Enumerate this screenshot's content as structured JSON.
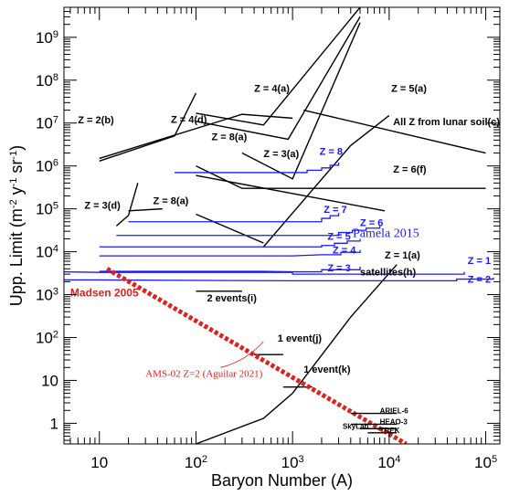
{
  "chart_data": {
    "type": "line",
    "xlabel": "Baryon Number (A)",
    "ylabel": "Upp. Limit (m",
    "ylabel_sup1": "-2",
    "ylabel_mid": " y",
    "ylabel_sup2": "-1",
    "ylabel_mid2": " sr",
    "ylabel_sup3": "-1",
    "ylabel_end": ")",
    "x_scale": "log",
    "y_scale": "log",
    "xlim": [
      4.3,
      140000
    ],
    "ylim": [
      0.33,
      5000000000
    ],
    "x_ticks": [
      {
        "value": 10,
        "base": "10",
        "exp": ""
      },
      {
        "value": 100,
        "base": "10",
        "exp": "2"
      },
      {
        "value": 1000,
        "base": "10",
        "exp": "3"
      },
      {
        "value": 10000,
        "base": "10",
        "exp": "4"
      },
      {
        "value": 100000,
        "base": "10",
        "exp": "5"
      }
    ],
    "y_ticks": [
      {
        "value": 1,
        "base": "1",
        "exp": ""
      },
      {
        "value": 10,
        "base": "10",
        "exp": ""
      },
      {
        "value": 100,
        "base": "10",
        "exp": "2"
      },
      {
        "value": 1000,
        "base": "10",
        "exp": "3"
      },
      {
        "value": 10000,
        "base": "10",
        "exp": "4"
      },
      {
        "value": 100000,
        "base": "10",
        "exp": "5"
      },
      {
        "value": 1000000,
        "base": "10",
        "exp": "6"
      },
      {
        "value": 10000000,
        "base": "10",
        "exp": "7"
      },
      {
        "value": 100000000,
        "base": "10",
        "exp": "8"
      },
      {
        "value": 1000000000,
        "base": "10",
        "exp": "9"
      }
    ],
    "grid": false,
    "colors": {
      "black": "#000000",
      "blue": "#1a1aff",
      "red": "#e0201c"
    },
    "series": [
      {
        "name": "Z = 4(a)",
        "color": "#000000",
        "kind": "black",
        "x": [
          100,
          500,
          5000
        ],
        "y": [
          17000000,
          9000000,
          5000000000
        ]
      },
      {
        "name": "Z = 5(a)",
        "color": "#000000",
        "kind": "black",
        "x": [
          500,
          4000,
          10000
        ],
        "y": [
          13000,
          3000000,
          15000000
        ]
      },
      {
        "name": "Z = 8(a)",
        "color": "#000000",
        "kind": "black",
        "x": [
          100,
          900,
          5000
        ],
        "y": [
          11000000,
          4200000,
          3000000000
        ]
      },
      {
        "name": "Z = 8(a)",
        "color": "#000000",
        "kind": "black",
        "x": [
          20,
          45
        ],
        "y": [
          90000,
          100000
        ]
      },
      {
        "name": "Z = 3(a)",
        "color": "#000000",
        "kind": "black",
        "x": [
          300,
          1000,
          5000
        ],
        "y": [
          2000000,
          500000,
          2200000000
        ]
      },
      {
        "name": "Z = 3(a)",
        "color": "#000000",
        "kind": "black",
        "x": [
          100,
          9000
        ],
        "y": [
          600000,
          90000
        ]
      },
      {
        "name": "Z = 2(b)",
        "color": "#000000",
        "kind": "black",
        "x": [
          10,
          300,
          1000
        ],
        "y": [
          1500000,
          16000000,
          13000000
        ]
      },
      {
        "name": "Z = 4(d)",
        "color": "#000000",
        "kind": "black",
        "x": [
          10,
          60,
          100
        ],
        "y": [
          1300000,
          5000000,
          50000000
        ]
      },
      {
        "name": "Z = 3(d)",
        "color": "#000000",
        "kind": "black",
        "x": [
          15,
          20,
          25
        ],
        "y": [
          40000,
          70000,
          400000
        ]
      },
      {
        "name": "Z = 6(f)",
        "color": "#000000",
        "kind": "black",
        "x": [
          100,
          300,
          100000
        ],
        "y": [
          1000000,
          300000,
          300000
        ]
      },
      {
        "name": "All Z from lunar soil(c)",
        "color": "#000000",
        "kind": "black",
        "x": [
          1300,
          100000
        ],
        "y": [
          20000000,
          2000000
        ]
      },
      {
        "name": "2 events(i)",
        "color": "#000000",
        "kind": "black",
        "x": [
          100,
          300
        ],
        "y": [
          1200,
          1200
        ]
      },
      {
        "name": "",
        "color": "#000000",
        "kind": "black",
        "x": [
          100,
          500
        ],
        "y": [
          75000,
          16000
        ]
      },
      {
        "name": "Z = 1(a)",
        "color": "#000000",
        "kind": "black",
        "x": [
          100,
          500,
          1000,
          4000,
          12000
        ],
        "y": [
          0.33,
          1.3,
          5,
          300,
          5000
        ]
      },
      {
        "name": "1 event(j)",
        "color": "#000000",
        "kind": "black",
        "x": [
          400,
          800
        ],
        "y": [
          40,
          40
        ]
      },
      {
        "name": "1 event(k)",
        "color": "#000000",
        "kind": "black",
        "x": [
          800,
          1600
        ],
        "y": [
          7,
          7
        ]
      },
      {
        "name": "Z = 1",
        "color": "#1a1aff",
        "kind": "blue",
        "x": [
          4.3,
          10,
          100,
          1000,
          10000,
          60000
        ],
        "y": [
          3400,
          3300,
          3300,
          3000,
          3000,
          3400
        ]
      },
      {
        "name": "Z = 2",
        "color": "#1a1aff",
        "kind": "blue",
        "x": [
          4.3,
          10,
          1000,
          10000,
          50000,
          120000
        ],
        "y": [
          2200,
          2200,
          2100,
          2100,
          2300,
          2500
        ]
      },
      {
        "name": "Z = 3",
        "color": "#1a1aff",
        "kind": "blue",
        "x": [
          10,
          100,
          500,
          1000,
          2000,
          5000
        ],
        "y": [
          3500,
          3500,
          3500,
          3400,
          3800,
          4500
        ]
      },
      {
        "name": "Z = 4",
        "color": "#1a1aff",
        "kind": "blue",
        "x": [
          10,
          100,
          1000,
          2000,
          5000
        ],
        "y": [
          8000,
          8000,
          8000,
          8500,
          11000
        ]
      },
      {
        "name": "Z = 5",
        "color": "#1a1aff",
        "kind": "blue",
        "x": [
          10,
          100,
          1000,
          2000,
          5000
        ],
        "y": [
          13000,
          13000,
          13000,
          14000,
          20000
        ]
      },
      {
        "name": "Z = 6",
        "color": "#1a1aff",
        "kind": "blue",
        "x": [
          15,
          100,
          1000,
          3000,
          8000
        ],
        "y": [
          24000,
          24000,
          24000,
          28000,
          40000
        ]
      },
      {
        "name": "Z = 7",
        "color": "#1a1aff",
        "kind": "blue",
        "x": [
          20,
          100,
          1000,
          2000,
          3000
        ],
        "y": [
          50000,
          50000,
          50000,
          60000,
          80000
        ]
      },
      {
        "name": "Z = 8",
        "color": "#1a1aff",
        "kind": "blue",
        "x": [
          60,
          100,
          1000,
          2000,
          3000
        ],
        "y": [
          700000,
          700000,
          700000,
          900000,
          1200000
        ]
      },
      {
        "name": "Madsen 2005",
        "color": "#e0201c",
        "kind": "red-dashed",
        "x": [
          12,
          15000
        ],
        "y": [
          4000,
          0.33
        ]
      },
      {
        "name": "AMS-02 Z=2 (Aguilar 2021)",
        "color": "#e0201c",
        "kind": "red-curve",
        "x": [
          180,
          320,
          500
        ],
        "y": [
          20,
          40,
          80
        ]
      },
      {
        "name": "ARIEL-6",
        "color": "#000000",
        "kind": "black",
        "x": [
          4000,
          12000
        ],
        "y": [
          1.7,
          1.7
        ]
      },
      {
        "name": "HEAO-3",
        "color": "#000000",
        "kind": "black",
        "x": [
          4000,
          12000
        ],
        "y": [
          0.95,
          0.95
        ]
      },
      {
        "name": "SkyLab",
        "color": "#000000",
        "kind": "black",
        "x": [
          5000,
          12000
        ],
        "y": [
          0.75,
          0.75
        ]
      },
      {
        "name": "TREK",
        "color": "#000000",
        "kind": "black",
        "x": [
          6000,
          12000
        ],
        "y": [
          0.6,
          0.6
        ]
      }
    ],
    "annotations": [
      {
        "text": "Z = 4(a)",
        "style": "black",
        "x": 400,
        "y": 54000000
      },
      {
        "text": "Z = 5(a)",
        "style": "black",
        "x": 10500,
        "y": 54000000
      },
      {
        "text": "Z = 2(b)",
        "style": "black",
        "x": 6,
        "y": 9800000
      },
      {
        "text": "Z = 4(d)",
        "style": "black",
        "x": 55,
        "y": 10000000
      },
      {
        "text": "Z = 8(a)",
        "style": "black",
        "x": 145,
        "y": 4000000
      },
      {
        "text": "Z = 3(a)",
        "style": "black",
        "x": 500,
        "y": 1600000
      },
      {
        "text": "Z = 3(d)",
        "style": "black",
        "x": 7,
        "y": 100000
      },
      {
        "text": "Z = 8(a)",
        "style": "black",
        "x": 36,
        "y": 130000
      },
      {
        "text": "All Z from lunar soil(c)",
        "style": "black",
        "x": 11000,
        "y": 9000000
      },
      {
        "text": "Z = 6(f)",
        "style": "black",
        "x": 11000,
        "y": 700000
      },
      {
        "text": "Z = 1(a)",
        "style": "black",
        "x": 9000,
        "y": 7000
      },
      {
        "text": "2 events(i)",
        "style": "black",
        "x": 130,
        "y": 700
      },
      {
        "text": "1 event(j)",
        "style": "black",
        "x": 700,
        "y": 80
      },
      {
        "text": "1 event(k)",
        "style": "black",
        "x": 1300,
        "y": 15
      },
      {
        "text": "satellites(h)",
        "style": "sat",
        "x": 5000,
        "y": 2800
      },
      {
        "text": "Z = 8",
        "style": "blue",
        "x": 1900,
        "y": 1800000
      },
      {
        "text": "Z = 7",
        "style": "blue",
        "x": 2100,
        "y": 80000
      },
      {
        "text": "Z = 6",
        "style": "blue",
        "x": 5000,
        "y": 40000
      },
      {
        "text": "Z = 5",
        "style": "blue",
        "x": 2300,
        "y": 19000
      },
      {
        "text": "Z = 4",
        "style": "blue",
        "x": 2600,
        "y": 9000
      },
      {
        "text": "Z = 3",
        "style": "blue",
        "x": 2300,
        "y": 3500
      },
      {
        "text": "Z = 1",
        "style": "blue",
        "x": 65000,
        "y": 5200
      },
      {
        "text": "Z = 2",
        "style": "blue",
        "x": 65000,
        "y": 1900
      },
      {
        "text": "Pamela 2015",
        "style": "pamela",
        "x": 4200,
        "y": 22000
      },
      {
        "text": "Madsen 2005",
        "style": "madsen",
        "x": 5,
        "y": 900
      },
      {
        "text": "AMS-02 Z=2 (Aguilar 2021)",
        "style": "ams",
        "x": 30,
        "y": 12
      },
      {
        "text": "ARIEL-6",
        "style": "sat-small",
        "x": 8000,
        "y": 1.7
      },
      {
        "text": "HEAO-3",
        "style": "sat-small",
        "x": 8000,
        "y": 0.95
      },
      {
        "text": "SkyLab",
        "style": "sat-small",
        "x": 3300,
        "y": 0.75
      },
      {
        "text": "TREK",
        "style": "sat-small",
        "x": 8000,
        "y": 0.6
      }
    ]
  }
}
